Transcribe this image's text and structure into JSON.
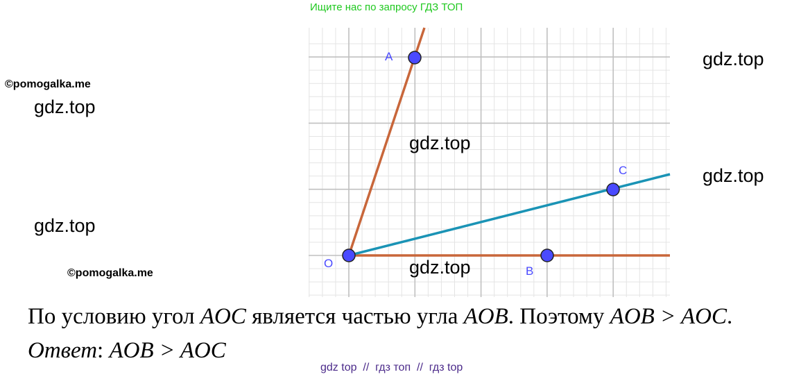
{
  "header_note": "Ищите нас по запросу ГДЗ ТОП",
  "watermarks": {
    "gdz": "gdz.top",
    "pomogalka": "©pomogalka.me"
  },
  "figure": {
    "points": [
      {
        "label": "O"
      },
      {
        "label": "A"
      },
      {
        "label": "B"
      },
      {
        "label": "C"
      }
    ],
    "colors": {
      "ray_oa_ob": "#c8663a",
      "ray_oc": "#1a93b5",
      "point_fill": "#4a4aff",
      "grid_major": "#c0c0c0",
      "grid_minor": "#e4e4e4"
    }
  },
  "solution": {
    "line1_a": "По условию угол ",
    "line1_b": "AOC",
    "line1_c": " является частью угла ",
    "line1_d": "AOB",
    "line1_e": ". Поэтому ",
    "line1_f": "AOB > AOC",
    "line1_g": ".",
    "answer_label": "Ответ",
    "answer_colon": ": ",
    "answer_value": "AOB > AOC"
  },
  "footer": "gdz top  //  гдз топ  //  гдз top"
}
